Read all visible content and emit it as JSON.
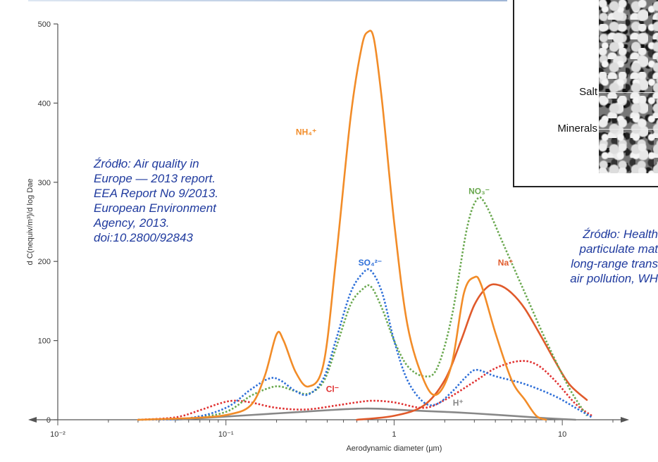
{
  "chart_data": {
    "type": "line",
    "xlabel": "Aerodynamic diameter (µm)",
    "ylabel": "d C(nequiv/m³)/d log Dae",
    "x_scale": "log",
    "xlim": [
      0.01,
      20
    ],
    "ylim": [
      0,
      500
    ],
    "x_ticks": [
      {
        "value": 0.01,
        "label": "10⁻²"
      },
      {
        "value": 0.1,
        "label": "10⁻¹"
      },
      {
        "value": 1,
        "label": "1"
      },
      {
        "value": 10,
        "label": "10"
      }
    ],
    "y_ticks": [
      0,
      100,
      200,
      300,
      400,
      500
    ],
    "grid": false,
    "series": [
      {
        "name": "NH₄⁺",
        "color": "#f28c28",
        "style": "solid",
        "points": [
          [
            0.03,
            0
          ],
          [
            0.06,
            2
          ],
          [
            0.1,
            6
          ],
          [
            0.14,
            18
          ],
          [
            0.17,
            55
          ],
          [
            0.2,
            108
          ],
          [
            0.22,
            100
          ],
          [
            0.26,
            60
          ],
          [
            0.31,
            42
          ],
          [
            0.38,
            70
          ],
          [
            0.45,
            200
          ],
          [
            0.55,
            380
          ],
          [
            0.64,
            470
          ],
          [
            0.7,
            490
          ],
          [
            0.76,
            480
          ],
          [
            0.85,
            400
          ],
          [
            1.0,
            250
          ],
          [
            1.2,
            120
          ],
          [
            1.5,
            50
          ],
          [
            1.8,
            32
          ],
          [
            2.2,
            70
          ],
          [
            2.6,
            160
          ],
          [
            3.0,
            180
          ],
          [
            3.3,
            170
          ],
          [
            4.0,
            110
          ],
          [
            5.0,
            50
          ],
          [
            6.0,
            25
          ],
          [
            7.0,
            5
          ],
          [
            8.0,
            0
          ]
        ]
      },
      {
        "name": "SO₄²⁻",
        "color": "#2e6fd8",
        "style": "dotted",
        "points": [
          [
            0.03,
            0
          ],
          [
            0.06,
            2
          ],
          [
            0.1,
            15
          ],
          [
            0.14,
            38
          ],
          [
            0.18,
            52
          ],
          [
            0.21,
            50
          ],
          [
            0.26,
            36
          ],
          [
            0.31,
            32
          ],
          [
            0.38,
            52
          ],
          [
            0.45,
            100
          ],
          [
            0.55,
            160
          ],
          [
            0.65,
            185
          ],
          [
            0.73,
            188
          ],
          [
            0.85,
            160
          ],
          [
            1.0,
            100
          ],
          [
            1.2,
            50
          ],
          [
            1.5,
            22
          ],
          [
            1.8,
            20
          ],
          [
            2.2,
            35
          ],
          [
            2.7,
            55
          ],
          [
            3.1,
            63
          ],
          [
            4.0,
            55
          ],
          [
            6.0,
            45
          ],
          [
            9.0,
            30
          ],
          [
            12.0,
            15
          ],
          [
            15.0,
            3
          ]
        ]
      },
      {
        "name": "NO₃⁻",
        "color": "#6aa84f",
        "style": "dotted",
        "points": [
          [
            0.03,
            0
          ],
          [
            0.06,
            2
          ],
          [
            0.1,
            10
          ],
          [
            0.14,
            30
          ],
          [
            0.18,
            40
          ],
          [
            0.21,
            42
          ],
          [
            0.26,
            36
          ],
          [
            0.31,
            33
          ],
          [
            0.38,
            48
          ],
          [
            0.45,
            90
          ],
          [
            0.55,
            145
          ],
          [
            0.65,
            165
          ],
          [
            0.73,
            168
          ],
          [
            0.85,
            140
          ],
          [
            1.0,
            100
          ],
          [
            1.2,
            68
          ],
          [
            1.5,
            55
          ],
          [
            1.8,
            65
          ],
          [
            2.2,
            130
          ],
          [
            2.7,
            240
          ],
          [
            3.1,
            278
          ],
          [
            3.5,
            272
          ],
          [
            4.5,
            220
          ],
          [
            6.0,
            160
          ],
          [
            8.0,
            100
          ],
          [
            11.0,
            40
          ],
          [
            14.0,
            5
          ]
        ]
      },
      {
        "name": "Na⁺",
        "color": "#e05a2b",
        "style": "solid",
        "points": [
          [
            0.6,
            0
          ],
          [
            1.0,
            5
          ],
          [
            1.5,
            18
          ],
          [
            2.0,
            50
          ],
          [
            2.5,
            100
          ],
          [
            3.0,
            145
          ],
          [
            3.6,
            168
          ],
          [
            4.2,
            170
          ],
          [
            5.0,
            160
          ],
          [
            6.0,
            140
          ],
          [
            7.5,
            105
          ],
          [
            9.0,
            75
          ],
          [
            11.0,
            45
          ],
          [
            14.0,
            25
          ]
        ]
      },
      {
        "name": "Cl⁻",
        "color": "#e03030",
        "style": "dotted",
        "points": [
          [
            0.03,
            0
          ],
          [
            0.05,
            3
          ],
          [
            0.07,
            12
          ],
          [
            0.09,
            20
          ],
          [
            0.11,
            24
          ],
          [
            0.14,
            22
          ],
          [
            0.2,
            15
          ],
          [
            0.3,
            13
          ],
          [
            0.45,
            18
          ],
          [
            0.6,
            22
          ],
          [
            0.75,
            24
          ],
          [
            1.0,
            22
          ],
          [
            1.5,
            15
          ],
          [
            2.0,
            25
          ],
          [
            3.0,
            48
          ],
          [
            4.0,
            65
          ],
          [
            5.5,
            74
          ],
          [
            7.0,
            70
          ],
          [
            9.0,
            50
          ],
          [
            12.0,
            20
          ],
          [
            15.0,
            5
          ]
        ]
      },
      {
        "name": "H⁺",
        "color": "#888888",
        "style": "solid",
        "points": [
          [
            0.05,
            0
          ],
          [
            0.1,
            4
          ],
          [
            0.2,
            8
          ],
          [
            0.4,
            12
          ],
          [
            0.6,
            14
          ],
          [
            0.8,
            14
          ],
          [
            1.2,
            12
          ],
          [
            2.0,
            10
          ],
          [
            3.0,
            8
          ],
          [
            5.0,
            5
          ],
          [
            8.0,
            2
          ],
          [
            12.0,
            0
          ]
        ]
      }
    ],
    "series_labels": [
      {
        "name": "NH₄⁺",
        "x": 0.3,
        "y": 360,
        "color": "#f28c28"
      },
      {
        "name": "SO₄²⁻",
        "x": 0.72,
        "y": 195,
        "color": "#2e6fd8"
      },
      {
        "name": "NO₃⁻",
        "x": 3.2,
        "y": 285,
        "color": "#6aa84f"
      },
      {
        "name": "Na⁺",
        "x": 4.6,
        "y": 195,
        "color": "#e05a2b"
      },
      {
        "name": "Cl⁻",
        "x": 0.43,
        "y": 35,
        "color": "#e03030"
      },
      {
        "name": "H⁺",
        "x": 2.4,
        "y": 18,
        "color": "#888888"
      }
    ]
  },
  "source_left": {
    "lines": [
      "Źródło: Air quality in",
      "Europe — 2013 report.",
      "EEA Report  No 9/2013.",
      "European Environment",
      "Agency, 2013.",
      "doi:10.2800/92843"
    ]
  },
  "source_right": {
    "lines": [
      "Źródło: Health",
      "particulate mat",
      "long-range  trans",
      "air pollution, WH"
    ]
  },
  "inset": {
    "labels": {
      "salt": "Salt",
      "minerals": "Minerals"
    }
  }
}
